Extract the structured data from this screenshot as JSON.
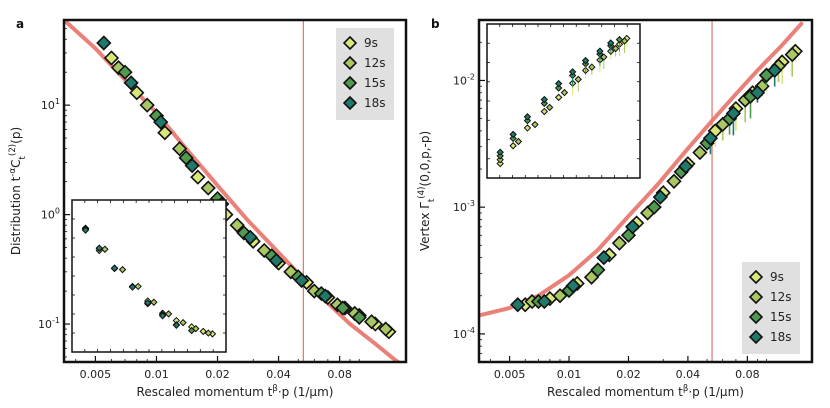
{
  "colors": {
    "fit_curve": "#e8736a",
    "vline": "#e8736a",
    "legend_bg": "#e0e0e0",
    "series": [
      "#d8e878",
      "#a9c763",
      "#4f9a4e",
      "#1f7a6c"
    ]
  },
  "chart_data": [
    {
      "type": "scatter",
      "panel_label": "a",
      "xlabel": "Rescaled momentum t^β·p (1/μm)",
      "ylabel": "Distribution t^{-α}C_t^{(2)}(p)",
      "x_scale": "log",
      "y_scale": "log",
      "xlim": [
        0.0035,
        0.17
      ],
      "ylim": [
        0.045,
        60
      ],
      "x_ticks": [
        0.005,
        0.01,
        0.02,
        0.04,
        0.08
      ],
      "x_tick_labels": [
        "0.005",
        "0.01",
        "0.02",
        "0.04",
        "0.08"
      ],
      "y_ticks": [
        0.1,
        1,
        10
      ],
      "y_tick_labels": [
        "10^-1",
        "10^0",
        "10^1"
      ],
      "vline_x": 0.053,
      "legend_position": "top-right",
      "legend": [
        "9s",
        "12s",
        "15s",
        "18s"
      ],
      "fit": {
        "x": [
          0.0035,
          0.005,
          0.007,
          0.01,
          0.014,
          0.02,
          0.028,
          0.04,
          0.053,
          0.07,
          0.09,
          0.12,
          0.15,
          0.17
        ],
        "y": [
          60,
          33,
          17,
          8.5,
          4.0,
          1.85,
          0.9,
          0.45,
          0.26,
          0.155,
          0.1,
          0.066,
          0.047,
          0.04
        ]
      },
      "series": [
        {
          "name": "9s",
          "x": [
            0.006,
            0.008,
            0.011,
            0.016,
            0.022,
            0.03,
            0.04,
            0.055,
            0.07,
            0.085,
            0.1,
            0.12,
            0.14
          ],
          "y": [
            27,
            13,
            5.6,
            2.2,
            1.0,
            0.57,
            0.36,
            0.24,
            0.175,
            0.14,
            0.12,
            0.1,
            0.085
          ]
        },
        {
          "name": "12s",
          "x": [
            0.0065,
            0.009,
            0.013,
            0.018,
            0.025,
            0.034,
            0.046,
            0.06,
            0.078,
            0.095,
            0.115,
            0.135
          ],
          "y": [
            22,
            10,
            4.0,
            1.75,
            0.8,
            0.47,
            0.3,
            0.2,
            0.15,
            0.125,
            0.105,
            0.09
          ]
        },
        {
          "name": "15s",
          "x": [
            0.007,
            0.01,
            0.014,
            0.02,
            0.027,
            0.037,
            0.05,
            0.065,
            0.083,
            0.1
          ],
          "y": [
            20,
            8,
            3.3,
            1.4,
            0.68,
            0.42,
            0.27,
            0.19,
            0.14,
            0.115
          ]
        },
        {
          "name": "18s",
          "x": [
            0.0055,
            0.0075,
            0.0105,
            0.015,
            0.021,
            0.029,
            0.039,
            0.052,
            0.068
          ],
          "y": [
            37,
            16,
            7.0,
            2.8,
            1.25,
            0.62,
            0.38,
            0.25,
            0.18
          ]
        }
      ],
      "inset": {
        "series": [
          {
            "name": "9s",
            "x": [
              0.006,
              0.008,
              0.011,
              0.016,
              0.022,
              0.03,
              0.04,
              0.055,
              0.07,
              0.085
            ],
            "y": [
              0.75,
              0.5,
              0.36,
              0.26,
              0.2,
              0.16,
              0.14,
              0.125,
              0.115,
              0.11
            ]
          },
          {
            "name": "12s",
            "x": [
              0.006,
              0.009,
              0.013,
              0.018,
              0.025,
              0.034,
              0.046,
              0.06,
              0.078
            ],
            "y": [
              0.8,
              0.55,
              0.38,
              0.28,
              0.21,
              0.17,
              0.145,
              0.13,
              0.12
            ]
          },
          {
            "name": "15s",
            "x": [
              0.006,
              0.008,
              0.011,
              0.016,
              0.022,
              0.03,
              0.04,
              0.055
            ],
            "y": [
              0.85,
              0.6,
              0.42,
              0.3,
              0.22,
              0.18,
              0.15,
              0.135
            ]
          },
          {
            "name": "18s",
            "x": [
              0.006,
              0.008,
              0.011,
              0.016,
              0.022,
              0.03,
              0.04
            ],
            "y": [
              0.9,
              0.65,
              0.45,
              0.32,
              0.24,
              0.19,
              0.16
            ]
          }
        ]
      }
    },
    {
      "type": "scatter",
      "panel_label": "b",
      "xlabel": "Rescaled momentum t^β·p (1/μm)",
      "ylabel": "Vertex Γ_t^{(4)}(0,0,p,-p)",
      "x_scale": "log",
      "y_scale": "log",
      "xlim": [
        0.0035,
        0.17
      ],
      "ylim": [
        6e-05,
        0.03
      ],
      "x_ticks": [
        0.005,
        0.01,
        0.02,
        0.04,
        0.08
      ],
      "x_tick_labels": [
        "0.005",
        "0.01",
        "0.02",
        "0.04",
        "0.08"
      ],
      "y_ticks": [
        0.0001,
        0.001,
        0.01
      ],
      "y_tick_labels": [
        "10^-4",
        "10^-3",
        "10^-2"
      ],
      "vline_x": 0.053,
      "legend_position": "bottom-right",
      "legend": [
        "9s",
        "12s",
        "15s",
        "18s"
      ],
      "fit": {
        "x": [
          0.0035,
          0.005,
          0.007,
          0.01,
          0.014,
          0.02,
          0.028,
          0.04,
          0.053,
          0.07,
          0.09,
          0.12,
          0.15
        ],
        "y": [
          0.00014,
          0.00016,
          0.0002,
          0.00029,
          0.00046,
          0.00085,
          0.0015,
          0.0029,
          0.0048,
          0.0078,
          0.012,
          0.019,
          0.028
        ]
      },
      "series": [
        {
          "name": "9s",
          "x": [
            0.006,
            0.008,
            0.011,
            0.016,
            0.022,
            0.03,
            0.04,
            0.055,
            0.07,
            0.085,
            0.1,
            0.12,
            0.14
          ],
          "y": [
            0.00017,
            0.00019,
            0.00025,
            0.00042,
            0.00075,
            0.0013,
            0.0022,
            0.004,
            0.006,
            0.008,
            0.011,
            0.014,
            0.017
          ]
        },
        {
          "name": "12s",
          "x": [
            0.0065,
            0.009,
            0.013,
            0.018,
            0.025,
            0.034,
            0.046,
            0.06,
            0.078,
            0.095,
            0.115,
            0.135
          ],
          "y": [
            0.00018,
            0.0002,
            0.00028,
            0.00052,
            0.0009,
            0.0016,
            0.0027,
            0.0045,
            0.007,
            0.009,
            0.013,
            0.016
          ]
        },
        {
          "name": "15s",
          "x": [
            0.007,
            0.01,
            0.014,
            0.02,
            0.027,
            0.037,
            0.05,
            0.065,
            0.083,
            0.1
          ],
          "y": [
            0.00018,
            0.00022,
            0.00032,
            0.0006,
            0.001,
            0.0019,
            0.0032,
            0.005,
            0.0075,
            0.011
          ]
        },
        {
          "name": "18s",
          "x": [
            0.0055,
            0.0075,
            0.0105,
            0.015,
            0.021,
            0.029,
            0.039,
            0.052,
            0.068,
            0.09,
            0.11
          ],
          "y": [
            0.00017,
            0.00018,
            0.00024,
            0.0004,
            0.0007,
            0.0012,
            0.0021,
            0.0035,
            0.0055,
            0.008,
            0.012
          ]
        }
      ],
      "inset": {
        "series": [
          {
            "name": "9s",
            "x": [
              0.006,
              0.008,
              0.011,
              0.016,
              0.022,
              0.03,
              0.04,
              0.055,
              0.07,
              0.085,
              0.1
            ],
            "y": [
              0.00018,
              0.0003,
              0.0005,
              0.0008,
              0.0012,
              0.0018,
              0.0026,
              0.0035,
              0.0045,
              0.0055,
              0.0065
            ]
          },
          {
            "name": "12s",
            "x": [
              0.006,
              0.009,
              0.013,
              0.018,
              0.025,
              0.034,
              0.046,
              0.06,
              0.078,
              0.095
            ],
            "y": [
              0.00019,
              0.00032,
              0.00052,
              0.00085,
              0.0013,
              0.0019,
              0.0027,
              0.0036,
              0.0046,
              0.0057
            ]
          },
          {
            "name": "15s",
            "x": [
              0.006,
              0.008,
              0.011,
              0.016,
              0.022,
              0.03,
              0.04,
              0.055,
              0.07,
              0.085
            ],
            "y": [
              0.0002,
              0.00033,
              0.00055,
              0.0009,
              0.0014,
              0.002,
              0.0028,
              0.0037,
              0.0047,
              0.0056
            ]
          },
          {
            "name": "18s",
            "x": [
              0.006,
              0.008,
              0.011,
              0.016,
              0.022,
              0.03,
              0.04,
              0.055,
              0.07
            ],
            "y": [
              0.00021,
              0.00035,
              0.00058,
              0.00095,
              0.0015,
              0.0021,
              0.0029,
              0.0038,
              0.0048
            ]
          }
        ]
      }
    }
  ]
}
